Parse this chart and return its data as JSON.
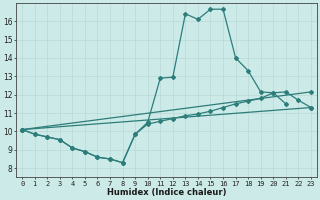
{
  "xlabel": "Humidex (Indice chaleur)",
  "bg_color": "#cceae8",
  "grid_color": "#b8d8d6",
  "line_color": "#2d7d7a",
  "xlim": [
    -0.5,
    23.5
  ],
  "ylim": [
    7.5,
    17.0
  ],
  "xticks": [
    0,
    1,
    2,
    3,
    4,
    5,
    6,
    7,
    8,
    9,
    10,
    11,
    12,
    13,
    14,
    15,
    16,
    17,
    18,
    19,
    20,
    21,
    22,
    23
  ],
  "yticks": [
    8,
    9,
    10,
    11,
    12,
    13,
    14,
    15,
    16
  ],
  "series": [
    {
      "x": [
        0,
        1,
        2,
        3,
        4,
        5,
        6,
        7,
        8,
        9,
        10,
        11,
        12,
        13,
        14,
        15,
        16,
        17,
        18,
        19,
        20,
        21
      ],
      "y": [
        10.1,
        9.85,
        9.7,
        9.55,
        9.1,
        8.9,
        8.6,
        8.5,
        8.3,
        9.85,
        10.5,
        12.9,
        12.95,
        16.4,
        16.1,
        16.65,
        16.65,
        14.0,
        13.3,
        12.15,
        12.1,
        11.5
      ]
    },
    {
      "x": [
        0,
        23
      ],
      "y": [
        10.1,
        11.3
      ]
    },
    {
      "x": [
        0,
        23
      ],
      "y": [
        10.1,
        12.15
      ]
    },
    {
      "x": [
        0,
        1,
        2,
        3,
        4,
        5,
        6,
        7,
        8,
        9,
        10,
        11,
        12,
        13,
        14,
        15,
        16,
        17,
        18,
        19,
        20,
        21,
        22,
        23
      ],
      "y": [
        10.1,
        9.85,
        9.7,
        9.55,
        9.1,
        8.9,
        8.6,
        8.5,
        8.3,
        9.85,
        10.4,
        10.55,
        10.7,
        10.85,
        10.95,
        11.1,
        11.3,
        11.5,
        11.65,
        11.8,
        12.1,
        12.15,
        11.7,
        11.3
      ]
    }
  ]
}
